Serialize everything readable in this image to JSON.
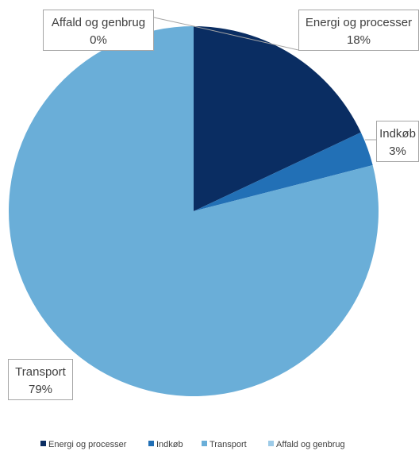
{
  "chart_data": {
    "type": "pie",
    "title": "",
    "categories": [
      "Energi og processer",
      "Indkøb",
      "Transport",
      "Affald og genbrug"
    ],
    "values": [
      18,
      3,
      79,
      0
    ],
    "value_labels": [
      "18%",
      "3%",
      "79%",
      "0%"
    ],
    "colors": [
      "#0a2d62",
      "#2270b6",
      "#6aaed8",
      "#9dcbe8"
    ],
    "legend": {
      "position": "bottom",
      "entries": [
        "Energi og processer",
        "Indkøb",
        "Transport",
        "Affald og genbrug"
      ]
    },
    "start_angle_deg": 0,
    "direction": "clockwise"
  }
}
